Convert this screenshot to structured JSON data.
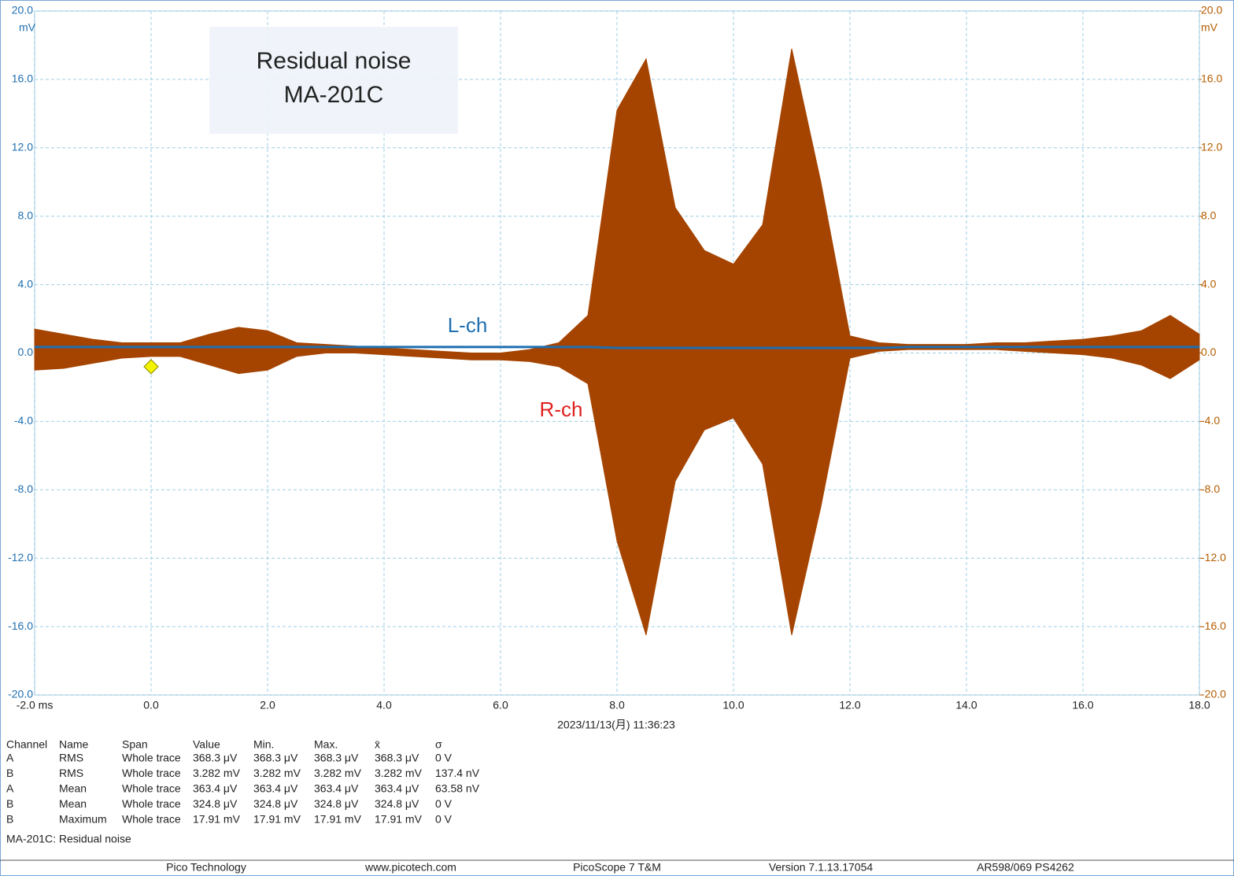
{
  "chart_data": {
    "type": "line",
    "annotation_box": [
      "Residual noise",
      "MA-201C"
    ],
    "timestamp": "2023/11/13(月) 11:36:23",
    "grid": true,
    "xlim": [
      -2,
      18
    ],
    "xticks": [
      {
        "value": -2,
        "label": "-2.0 ms"
      },
      {
        "value": 0,
        "label": "0.0"
      },
      {
        "value": 2,
        "label": "2.0"
      },
      {
        "value": 4,
        "label": "4.0"
      },
      {
        "value": 6,
        "label": "6.0"
      },
      {
        "value": 8,
        "label": "8.0"
      },
      {
        "value": 10,
        "label": "10.0"
      },
      {
        "value": 12,
        "label": "12.0"
      },
      {
        "value": 14,
        "label": "14.0"
      },
      {
        "value": 16,
        "label": "16.0"
      },
      {
        "value": 18,
        "label": "18.0"
      }
    ],
    "ylim": [
      -20,
      20
    ],
    "yticks": [
      {
        "value": -20,
        "label": "-20.0"
      },
      {
        "value": -16,
        "label": "-16.0"
      },
      {
        "value": -12,
        "label": "-12.0"
      },
      {
        "value": -8,
        "label": "-8.0"
      },
      {
        "value": -4,
        "label": "-4.0"
      },
      {
        "value": 0,
        "label": "0.0"
      },
      {
        "value": 4,
        "label": "4.0"
      },
      {
        "value": 8,
        "label": "8.0"
      },
      {
        "value": 12,
        "label": "12.0"
      },
      {
        "value": 16,
        "label": "16.0"
      },
      {
        "value": 20,
        "label": "20.0"
      }
    ],
    "y_unit": "mV",
    "y2lim": [
      -20,
      20
    ],
    "y2ticks": [
      {
        "value": -20,
        "label": "-20.0"
      },
      {
        "value": -16,
        "label": "-16.0"
      },
      {
        "value": -12,
        "label": "-12.0"
      },
      {
        "value": -8,
        "label": "-8.0"
      },
      {
        "value": -4,
        "label": "-4.0"
      },
      {
        "value": 0,
        "label": "0.0"
      },
      {
        "value": 4,
        "label": "4.0"
      },
      {
        "value": 8,
        "label": "8.0"
      },
      {
        "value": 12,
        "label": "12.0"
      },
      {
        "value": 16,
        "label": "16.0"
      },
      {
        "value": 20,
        "label": "20.0"
      }
    ],
    "y2_unit": "mV",
    "x": [
      -2,
      -1.5,
      -1,
      -0.5,
      0,
      0.5,
      1,
      1.5,
      2,
      2.5,
      3,
      3.5,
      4,
      4.5,
      5,
      5.5,
      6,
      6.5,
      7,
      7.5,
      8,
      8.5,
      9,
      9.5,
      10,
      10.5,
      11,
      11.5,
      12,
      12.5,
      13,
      13.5,
      14,
      14.5,
      15,
      15.5,
      16,
      16.5,
      17,
      17.5,
      18
    ],
    "series": [
      {
        "name": "L-ch",
        "color": "#1f6fb0",
        "values": [
          0.35,
          0.35,
          0.35,
          0.35,
          0.35,
          0.35,
          0.35,
          0.35,
          0.35,
          0.35,
          0.35,
          0.35,
          0.35,
          0.35,
          0.35,
          0.35,
          0.35,
          0.35,
          0.35,
          0.35,
          0.3,
          0.3,
          0.3,
          0.3,
          0.3,
          0.3,
          0.3,
          0.3,
          0.3,
          0.3,
          0.35,
          0.35,
          0.35,
          0.35,
          0.35,
          0.35,
          0.35,
          0.35,
          0.35,
          0.35,
          0.35
        ]
      },
      {
        "name": "R-ch",
        "color": "#a54400",
        "axis": "y2",
        "values": [
          1.4,
          1.1,
          0.8,
          0.6,
          0.6,
          0.6,
          1.1,
          1.5,
          1.3,
          0.6,
          0.5,
          0.4,
          0.3,
          0.2,
          0.1,
          0.0,
          0.0,
          0.2,
          0.6,
          2.2,
          14.2,
          17.2,
          8.5,
          6.0,
          5.2,
          7.5,
          17.8,
          10.0,
          1.0,
          0.6,
          0.5,
          0.5,
          0.5,
          0.6,
          0.6,
          0.7,
          0.8,
          1.0,
          1.3,
          2.2,
          1.1
        ],
        "lower": [
          -1.0,
          -0.9,
          -0.6,
          -0.3,
          -0.2,
          -0.2,
          -0.7,
          -1.2,
          -1.0,
          -0.2,
          0.0,
          0.0,
          -0.1,
          -0.2,
          -0.3,
          -0.4,
          -0.4,
          -0.5,
          -0.8,
          -1.8,
          -11.0,
          -16.5,
          -7.5,
          -4.5,
          -3.8,
          -6.5,
          -16.5,
          -9.0,
          -0.3,
          0.1,
          0.2,
          0.2,
          0.2,
          0.2,
          0.1,
          0.0,
          -0.1,
          -0.3,
          -0.7,
          -1.5,
          -0.4
        ]
      }
    ],
    "trigger": {
      "x": 0,
      "y": -0.8
    }
  },
  "measurements": {
    "headers": [
      "Channel",
      "Name",
      "Span",
      "Value",
      "Min.",
      "Max.",
      "x̄",
      "σ"
    ],
    "rows": [
      [
        "A",
        "RMS",
        "Whole trace",
        "368.3 μV",
        "368.3 μV",
        "368.3 μV",
        "368.3 μV",
        "0 V"
      ],
      [
        "B",
        "RMS",
        "Whole trace",
        "3.282 mV",
        "3.282 mV",
        "3.282 mV",
        "3.282 mV",
        "137.4 nV"
      ],
      [
        "A",
        "Mean",
        "Whole trace",
        "363.4 μV",
        "363.4 μV",
        "363.4 μV",
        "363.4 μV",
        "63.58 nV"
      ],
      [
        "B",
        "Mean",
        "Whole trace",
        "324.8 μV",
        "324.8 μV",
        "324.8 μV",
        "324.8 μV",
        "0 V"
      ],
      [
        "B",
        "Maximum",
        "Whole trace",
        "17.91 mV",
        "17.91 mV",
        "17.91 mV",
        "17.91 mV",
        "0 V"
      ]
    ]
  },
  "note": "MA-201C: Residual noise",
  "footer": [
    "Pico Technology",
    "www.picotech.com",
    "PicoScope 7 T&M",
    "Version 7.1.13.17054",
    "AR598/069 PS4262"
  ]
}
